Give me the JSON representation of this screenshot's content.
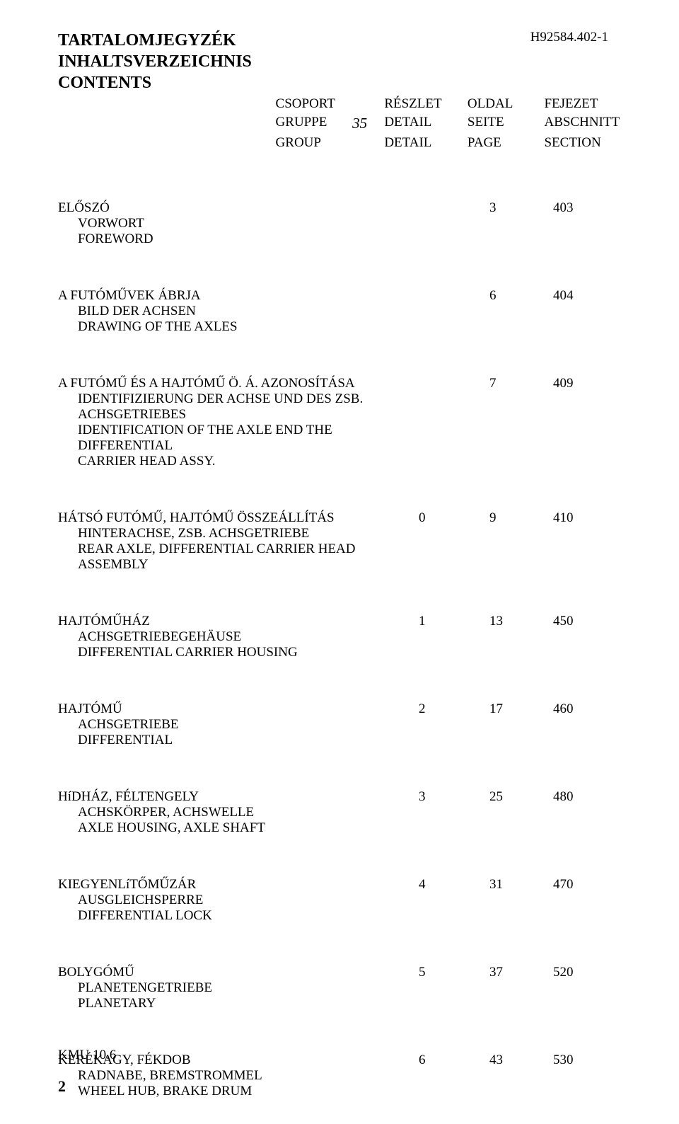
{
  "doc_code": "H92584.402-1",
  "title": {
    "hu": "TARTALOMJEGYZÉK",
    "de": "INHALTSVERZEICHNIS",
    "en": "CONTENTS"
  },
  "group_number": "35",
  "header": {
    "row1": {
      "c0": "CSOPORT",
      "c1": "RÉSZLET",
      "c2": "OLDAL",
      "c3": "FEJEZET"
    },
    "row2": {
      "c0": "GRUPPE",
      "c1": "DETAIL",
      "c2": "SEITE",
      "c3": "ABSCHNITT"
    },
    "row3": {
      "c0": "GROUP",
      "c1": "DETAIL",
      "c2": "PAGE",
      "c3": "SECTION"
    }
  },
  "entries": [
    {
      "lines": [
        "ELŐSZÓ",
        "VORWORT",
        "FOREWORD"
      ],
      "col1": "",
      "col2": "3",
      "col3": "403"
    },
    {
      "lines": [
        "A FUTÓMŰVEK ÁBRJA",
        "BILD DER ACHSEN",
        "DRAWING OF THE AXLES"
      ],
      "col1": "",
      "col2": "6",
      "col3": "404"
    },
    {
      "lines": [
        "A FUTÓMŰ ÉS A HAJTÓMŰ Ö. Á. AZONOSÍTÁSA",
        "IDENTIFIZIERUNG DER  ACHSE UND DES ZSB. ACHSGETRIEBES",
        "IDENTIFICATION OF THE AXLE END THE DIFFERENTIAL",
        "CARRIER HEAD ASSY."
      ],
      "col1": "",
      "col2": "7",
      "col3": "409"
    },
    {
      "lines": [
        "HÁTSÓ FUTÓMŰ, HAJTÓMŰ ÖSSZEÁLLÍTÁS",
        "HINTERACHSE, ZSB. ACHSGETRIEBE",
        "REAR AXLE, DIFFERENTIAL CARRIER HEAD ASSEMBLY"
      ],
      "col1": "0",
      "col2": "9",
      "col3": "410"
    },
    {
      "lines": [
        "HAJTÓMŰHÁZ",
        "ACHSGETRIEBEGEHÄUSE",
        "DIFFERENTIAL CARRIER HOUSING"
      ],
      "col1": "1",
      "col2": "13",
      "col3": "450"
    },
    {
      "lines": [
        "HAJTÓMŰ",
        "ACHSGETRIEBE",
        "DIFFERENTIAL"
      ],
      "col1": "2",
      "col2": "17",
      "col3": "460"
    },
    {
      "lines": [
        "HíDHÁZ, FÉLTENGELY",
        "ACHSKÖRPER, ACHSWELLE",
        "AXLE HOUSING, AXLE SHAFT"
      ],
      "col1": "3",
      "col2": "25",
      "col3": "480"
    },
    {
      "lines": [
        "KIEGYENLíTŐMŰZÁR",
        "AUSGLEICHSPERRE",
        "DIFFERENTIAL LOCK"
      ],
      "col1": "4",
      "col2": "31",
      "col3": "470"
    },
    {
      "lines": [
        "BOLYGÓMŰ",
        "PLANETENGETRIEBE",
        "PLANETARY"
      ],
      "col1": "5",
      "col2": "37",
      "col3": "520"
    },
    {
      "lines": [
        "KERÉKAGY, FÉKDOB",
        "RADNABE, BREMSTROMMEL",
        "WHEEL HUB, BRAKE DRUM"
      ],
      "col1": "6",
      "col2": "43",
      "col3": "530"
    }
  ],
  "footer_code": "KMU 10.6",
  "page_number": "2"
}
